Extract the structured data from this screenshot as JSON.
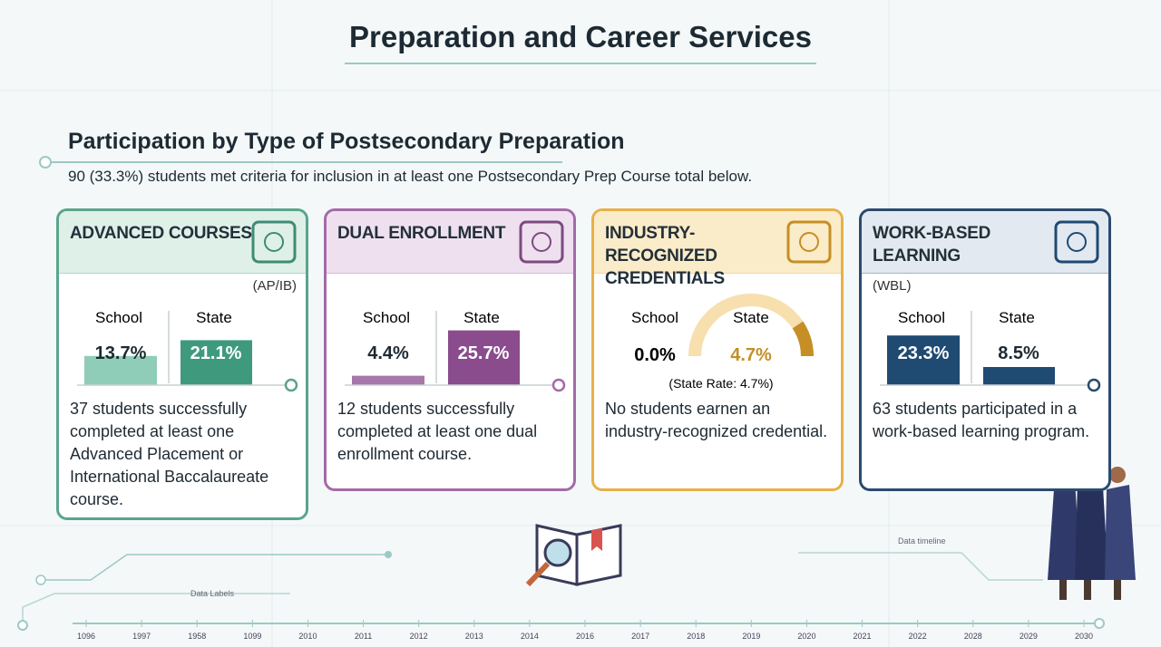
{
  "header": {
    "title": "Preparation and Career Services"
  },
  "section": {
    "title": "Participation by Type of Postsecondary Preparation",
    "summary": "90 (33.3%) students met criteria for inclusion in at least one Postsecondary Prep Course total below."
  },
  "columns": [
    "School",
    "State"
  ],
  "cards": [
    {
      "title": "ADVANCED COURSES",
      "subtitle": "(AP/IB)",
      "school": {
        "value": 13.7,
        "label": "13.7%"
      },
      "state": {
        "value": 21.1,
        "label": "21.1%"
      },
      "description": "37 students successfully completed at least one Advanced Placement or International Baccalaureate course."
    },
    {
      "title": "DUAL ENROLLMENT",
      "school": {
        "value": 4.4,
        "label": "4.4%"
      },
      "state": {
        "value": 25.7,
        "label": "25.7%"
      },
      "description": "12 students successfully completed at least one dual enrollment course."
    },
    {
      "title": "INDUSTRY-RECOGNIZED CREDENTIALS",
      "school": {
        "value": 0.0,
        "label": "0.0%"
      },
      "state": {
        "value": 4.7,
        "label": "4.7%"
      },
      "note": "(State Rate: 4.7%)",
      "description": "No students earnen an industry-recognized credential."
    },
    {
      "title": "WORK-BASED LEARNING",
      "subtitle": "(WBL)",
      "school": {
        "value": 23.3,
        "label": "23.3%"
      },
      "state": {
        "value": 8.5,
        "label": "8.5%"
      },
      "description": "63 students participated in a work-based learning program."
    }
  ],
  "timeline": {
    "label": "Data timeline",
    "side_label": "Data Labels",
    "years": [
      "1096",
      "1997",
      "1958",
      "1099",
      "2010",
      "2011",
      "2012",
      "2013",
      "2014",
      "2016",
      "2017",
      "2018",
      "2019",
      "2020",
      "2021",
      "2022",
      "2028",
      "2029",
      "2030"
    ]
  }
}
